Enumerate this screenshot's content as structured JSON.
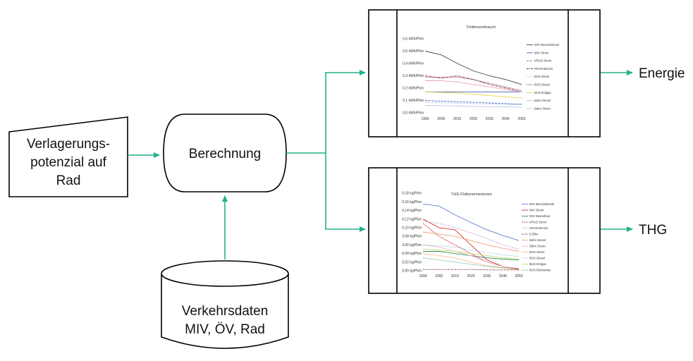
{
  "nodes": {
    "input": {
      "lines": [
        "Verlagerungs-",
        "potenzial auf",
        "Rad"
      ]
    },
    "process": {
      "label": "Berechnung"
    },
    "database": {
      "lines": [
        "Verkehrsdaten",
        "MIV, ÖV, Rad"
      ]
    }
  },
  "outputs": {
    "energy": "Energie",
    "thg": "THG"
  },
  "colors": {
    "arrow": "#21b18c",
    "stroke": "#000000"
  },
  "chart_data": [
    {
      "type": "line",
      "title": "Flottenverbrauch",
      "x": [
        1990,
        2000,
        2010,
        2020,
        2030,
        2040,
        2050
      ],
      "x_ticks": [
        "1990",
        "2000",
        "2010",
        "2020",
        "2030",
        "2040",
        "2050"
      ],
      "y_ticks": [
        "0,0 kWh/Pkm",
        "0,1 kWh/Pkm",
        "0,2 kWh/Pkm",
        "0,3 kWh/Pkm",
        "0,4 kWh/Pkm",
        "0,5 kWh/Pkm",
        "0,6 kWh/Pkm"
      ],
      "ylim": [
        0,
        0.6
      ],
      "legend": "right",
      "series": [
        {
          "name": "MIV Benzin/Diesel",
          "color": "#444444",
          "dash": "",
          "values": [
            0.5,
            0.47,
            0.4,
            0.34,
            0.3,
            0.27,
            0.23
          ]
        },
        {
          "name": "MIV Strom",
          "color": "#3a5fb4",
          "dash": "",
          "values": [
            0.17,
            0.17,
            0.17,
            0.17,
            0.17,
            0.17,
            0.17
          ]
        },
        {
          "name": "KRAD Strom",
          "color": "#3a5fb4",
          "dash": "3,1.5",
          "values": [
            0.1,
            0.095,
            0.09,
            0.085,
            0.08,
            0.075,
            0.07
          ]
        },
        {
          "name": "KRAD Benzin",
          "color": "#7a2a4a",
          "dash": "3,1,1,1",
          "values": [
            0.3,
            0.28,
            0.3,
            0.27,
            0.23,
            0.2,
            0.17
          ]
        },
        {
          "name": "BUS Strom",
          "color": "#9ab0e0",
          "dash": "1,1",
          "values": [
            0.085,
            0.082,
            0.078,
            0.075,
            0.072,
            0.068,
            0.065
          ]
        },
        {
          "name": "BUS Diesel",
          "color": "#7a2a4a",
          "dash": "1.2,1",
          "values": [
            0.29,
            0.29,
            0.29,
            0.27,
            0.24,
            0.21,
            0.18
          ]
        },
        {
          "name": "BUS Erdgas",
          "color": "#e8d84a",
          "dash": "",
          "values": [
            0.17,
            0.165,
            0.16,
            0.15,
            0.14,
            0.13,
            0.12
          ]
        },
        {
          "name": "Bahn Diesel",
          "color": "#e6a6b6",
          "dash": "",
          "values": [
            0.26,
            0.26,
            0.25,
            0.23,
            0.21,
            0.19,
            0.17
          ]
        },
        {
          "name": "Bahn Strom",
          "color": "#b8c6e6",
          "dash": "",
          "values": [
            0.06,
            0.058,
            0.055,
            0.052,
            0.05,
            0.048,
            0.045
          ]
        }
      ]
    },
    {
      "type": "line",
      "title": "THG Flottenemissionen",
      "x": [
        1990,
        2000,
        2010,
        2020,
        2030,
        2040,
        2050
      ],
      "x_ticks": [
        "1990",
        "2000",
        "2010",
        "2020",
        "2030",
        "2040",
        "2050"
      ],
      "y_ticks": [
        "0,00 kg/Pkm",
        "0,02 kg/Pkm",
        "0,04 kg/Pkm",
        "0,06 kg/Pkm",
        "0,08 kg/Pkm",
        "0,10 kg/Pkm",
        "0,12 kg/Pkm",
        "0,14 kg/Pkm",
        "0,16 kg/Pkm",
        "0,18 kg/Pkm"
      ],
      "ylim": [
        0,
        0.18
      ],
      "legend": "right",
      "series": [
        {
          "name": "MIV Benzin/Diesel",
          "color": "#5b7fc7",
          "dash": "",
          "values": [
            0.155,
            0.15,
            0.13,
            0.112,
            0.095,
            0.082,
            0.07
          ]
        },
        {
          "name": "MIV Strom",
          "color": "#d9302b",
          "dash": "",
          "values": [
            0.12,
            0.1,
            0.095,
            0.06,
            0.025,
            0.01,
            0.003
          ]
        },
        {
          "name": "MIV Biomethan",
          "color": "#2e8b57",
          "dash": "",
          "values": [
            0.045,
            0.045,
            0.04,
            0.035,
            0.03,
            0.027,
            0.025
          ]
        },
        {
          "name": "KRAD Strom",
          "color": "#d9302b",
          "dash": "2,1",
          "values": [
            0.11,
            0.08,
            0.06,
            0.04,
            0.02,
            0.01,
            0.004
          ]
        },
        {
          "name": "KRAD Benzin",
          "color": "#c9a9c9",
          "dash": "2,1",
          "values": [
            0.115,
            0.11,
            0.1,
            0.088,
            0.075,
            0.06,
            0.05
          ]
        },
        {
          "name": "E-Bike",
          "color": "#7a2a4a",
          "dash": "2,1,1,1",
          "values": [
            0.003,
            0.003,
            0.003,
            0.003,
            0.002,
            0.002,
            0.002
          ]
        },
        {
          "name": "Bahn Diesel",
          "color": "#f0a080",
          "dash": "",
          "values": [
            0.09,
            0.085,
            0.08,
            0.07,
            0.06,
            0.052,
            0.045
          ]
        },
        {
          "name": "Bahn Strom",
          "color": "#e8b8c8",
          "dash": "",
          "values": [
            0.06,
            0.055,
            0.045,
            0.035,
            0.02,
            0.01,
            0.005
          ]
        },
        {
          "name": "BUS Strom",
          "color": "#f08030",
          "dash": "1,1",
          "values": [
            0.04,
            0.035,
            0.03,
            0.02,
            0.012,
            0.006,
            0.003
          ]
        },
        {
          "name": "BUS Diesel",
          "color": "#8fb8d8",
          "dash": "1,1",
          "values": [
            0.06,
            0.058,
            0.055,
            0.048,
            0.042,
            0.037,
            0.033
          ]
        },
        {
          "name": "BUS Erdgas",
          "color": "#c5d87a",
          "dash": "",
          "values": [
            0.05,
            0.048,
            0.045,
            0.04,
            0.035,
            0.03,
            0.027
          ]
        },
        {
          "name": "BUS Biomethan",
          "color": "#3aa060",
          "dash": "1,1",
          "values": [
            0.03,
            0.025,
            0.02,
            0.015,
            0.01,
            0.007,
            0.005
          ]
        }
      ]
    }
  ]
}
